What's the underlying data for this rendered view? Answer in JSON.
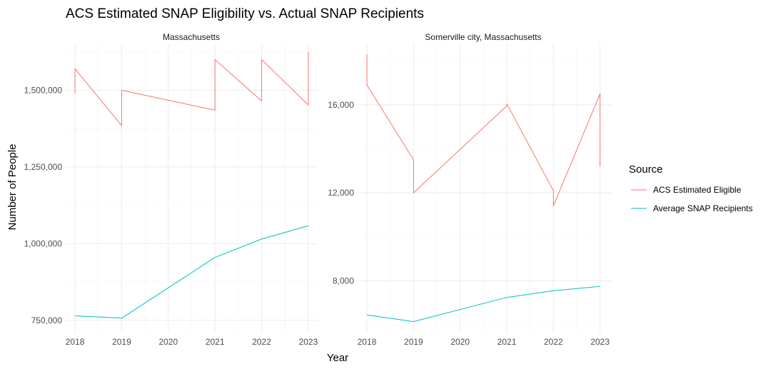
{
  "chart_data": {
    "type": "line",
    "title": "ACS Estimated SNAP Eligibility vs. Actual SNAP Recipients",
    "xlabel": "Year",
    "ylabel": "Number of People",
    "legend": {
      "title": "Source",
      "placement": "right",
      "entries": [
        {
          "name": "ACS Estimated Eligible",
          "color": "#F8766D"
        },
        {
          "name": "Average SNAP Recipients",
          "color": "#00BFC4"
        }
      ]
    },
    "grid": true,
    "panels": [
      {
        "strip": "Massachusetts",
        "xlim": [
          2017.8,
          2023.2
        ],
        "ylim": [
          710000,
          1650000
        ],
        "x_ticks": [
          2018,
          2019,
          2020,
          2021,
          2022,
          2023
        ],
        "y_ticks": [
          750000,
          1000000,
          1250000,
          1500000
        ],
        "y_tick_labels": [
          "750,000",
          "1,000,000",
          "1,250,000",
          "1,500,000"
        ],
        "series": [
          {
            "name": "ACS Estimated Eligible",
            "x": [
              2018,
              2018,
              2019,
              2019,
              2021,
              2021,
              2022,
              2022,
              2023,
              2023
            ],
            "y": [
              1490000,
              1570000,
              1385000,
              1500000,
              1435000,
              1600000,
              1465000,
              1600000,
              1452000,
              1625000
            ]
          },
          {
            "name": "Average SNAP Recipients",
            "x": [
              2018,
              2019,
              2021,
              2022,
              2023
            ],
            "y": [
              765000,
              757000,
              955000,
              1015000,
              1058000
            ]
          }
        ]
      },
      {
        "strip": "Somerville city, Massachusetts",
        "xlim": [
          2017.8,
          2023.25
        ],
        "ylim": [
          5650,
          18750
        ],
        "x_ticks": [
          2018,
          2019,
          2020,
          2021,
          2022,
          2023
        ],
        "y_ticks": [
          8000,
          12000,
          16000
        ],
        "y_tick_labels": [
          "8,000",
          "12,000",
          "16,000"
        ],
        "series": [
          {
            "name": "ACS Estimated Eligible",
            "x": [
              2018,
              2018,
              2019,
              2019,
              2021,
              2021,
              2022,
              2022,
              2023,
              2023
            ],
            "y": [
              18300,
              16900,
              13500,
              12000,
              15950,
              16050,
              12100,
              11400,
              16500,
              13200
            ]
          },
          {
            "name": "Average SNAP Recipients",
            "x": [
              2018,
              2019,
              2021,
              2022,
              2023
            ],
            "y": [
              6450,
              6150,
              7250,
              7550,
              7750
            ]
          }
        ]
      }
    ]
  }
}
